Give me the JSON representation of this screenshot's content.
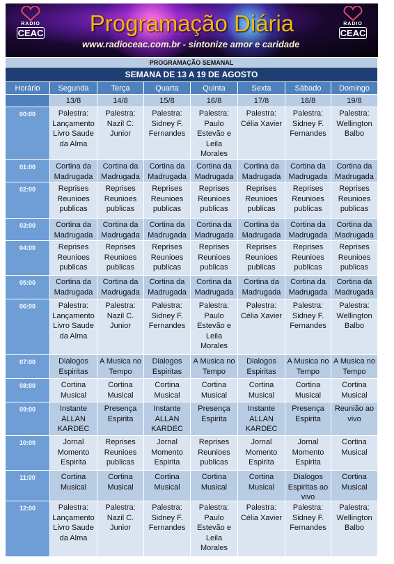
{
  "banner": {
    "title": "Programação Diária",
    "url": "www.radioceac.com.br - sintonize amor e caridade",
    "logo_top": "RADIO",
    "logo_bottom": "CEAC"
  },
  "table": {
    "title": "PROGRAMAÇÃO SEMANAL",
    "subtitle": "SEMANA DE 13 A 19 DE AGOSTO",
    "columns": [
      "Horário",
      "Segunda",
      "Terça",
      "Quarta",
      "Quinta",
      "Sexta",
      "Sábado",
      "Domingo"
    ],
    "dates": [
      "13/8",
      "14/8",
      "15/8",
      "16/8",
      "17/8",
      "18/8",
      "19/8"
    ],
    "rows": [
      {
        "time": "00:00",
        "cells": [
          "Palestra: Lançamento Livro Saude da Alma",
          "Palestra: Nazil C. Junior",
          "Palestra: Sidney F. Fernandes",
          "Palestra: Paulo Estevão e Leila Morales",
          "Palestra: Célia Xavier",
          "Palestra: Sidney F. Fernandes",
          "Palestra: Wellington Balbo"
        ]
      },
      {
        "time": "01:00",
        "cells": [
          "Cortina da Madrugada",
          "Cortina da Madrugada",
          "Cortina da Madrugada",
          "Cortina da Madrugada",
          "Cortina da Madrugada",
          "Cortina da Madrugada",
          "Cortina da Madrugada"
        ]
      },
      {
        "time": "02:00",
        "cells": [
          "Reprises Reunioes publicas",
          "Reprises Reunioes publicas",
          "Reprises Reunioes publicas",
          "Reprises Reunioes publicas",
          "Reprises Reunioes publicas",
          "Reprises Reunioes publicas",
          "Reprises Reunioes publicas"
        ]
      },
      {
        "time": "03:00",
        "cells": [
          "Cortina da Madrugada",
          "Cortina da Madrugada",
          "Cortina da Madrugada",
          "Cortina da Madrugada",
          "Cortina da Madrugada",
          "Cortina da Madrugada",
          "Cortina da Madrugada"
        ]
      },
      {
        "time": "04:00",
        "cells": [
          "Reprises Reunioes publicas",
          "Reprises Reunioes publicas",
          "Reprises Reunioes publicas",
          "Reprises Reunioes publicas",
          "Reprises Reunioes publicas",
          "Reprises Reunioes publicas",
          "Reprises Reunioes publicas"
        ]
      },
      {
        "time": "05:00",
        "cells": [
          "Cortina da Madrugada",
          "Cortina da Madrugada",
          "Cortina da Madrugada",
          "Cortina da Madrugada",
          "Cortina da Madrugada",
          "Cortina da Madrugada",
          "Cortina da Madrugada"
        ]
      },
      {
        "time": "06:00",
        "cells": [
          "Palestra: Lançamento Livro Saude da Alma",
          "Palestra: Nazil C. Junior",
          "Palestra: Sidney F. Fernandes",
          "Palestra: Paulo Estevão e Leila Morales",
          "Palestra: Célia Xavier",
          "Palestra: Sidney F. Fernandes",
          "Palestra: Wellington Balbo"
        ]
      },
      {
        "time": "07:00",
        "cells": [
          "Dialogos Espiritas",
          "A Musica no Tempo",
          "Dialogos Espiritas",
          "A Musica no Tempo",
          "Dialogos Espiritas",
          "A Musica no Tempo",
          "A Musica no Tempo"
        ]
      },
      {
        "time": "08:00",
        "cells": [
          "Cortina Musical",
          "Cortina Musical",
          "Cortina Musical",
          "Cortina Musical",
          "Cortina Musical",
          "Cortina Musical",
          "Cortina Musical"
        ]
      },
      {
        "time": "09:00",
        "cells": [
          "Instante ALLAN KARDEC",
          "Presença Espirita",
          "Instante ALLAN KARDEC",
          "Presença Espirita",
          "Instante ALLAN KARDEC",
          "Presença Espirita",
          "Reunião ao vivo"
        ]
      },
      {
        "time": "10:00",
        "cells": [
          "Jornal Momento Espirita",
          "Reprises Reunioes publicas",
          "Jornal Momento Espirita",
          "Reprises Reunioes publicas",
          "Jornal Momento Espirita",
          "Jornal Momento Espirita",
          "Cortina Musical"
        ]
      },
      {
        "time": "11:00",
        "cells": [
          "Cortina Musical",
          "Cortina Musical",
          "Cortina Musical",
          "Cortina Musical",
          "Cortina Musical",
          "Dialogos Espiritas ao vivo",
          "Cortina Musical"
        ]
      },
      {
        "time": "12:00",
        "cells": [
          "Palestra: Lançamento Livro Saude da Alma",
          "Palestra: Nazil C. Junior",
          "Palestra: Sidney F. Fernandes",
          "Palestra: Paulo Estevão e Leila Morales",
          "Palestra: Célia Xavier",
          "Palestra: Sidney F. Fernandes",
          "Palestra: Wellington Balbo"
        ]
      }
    ]
  }
}
